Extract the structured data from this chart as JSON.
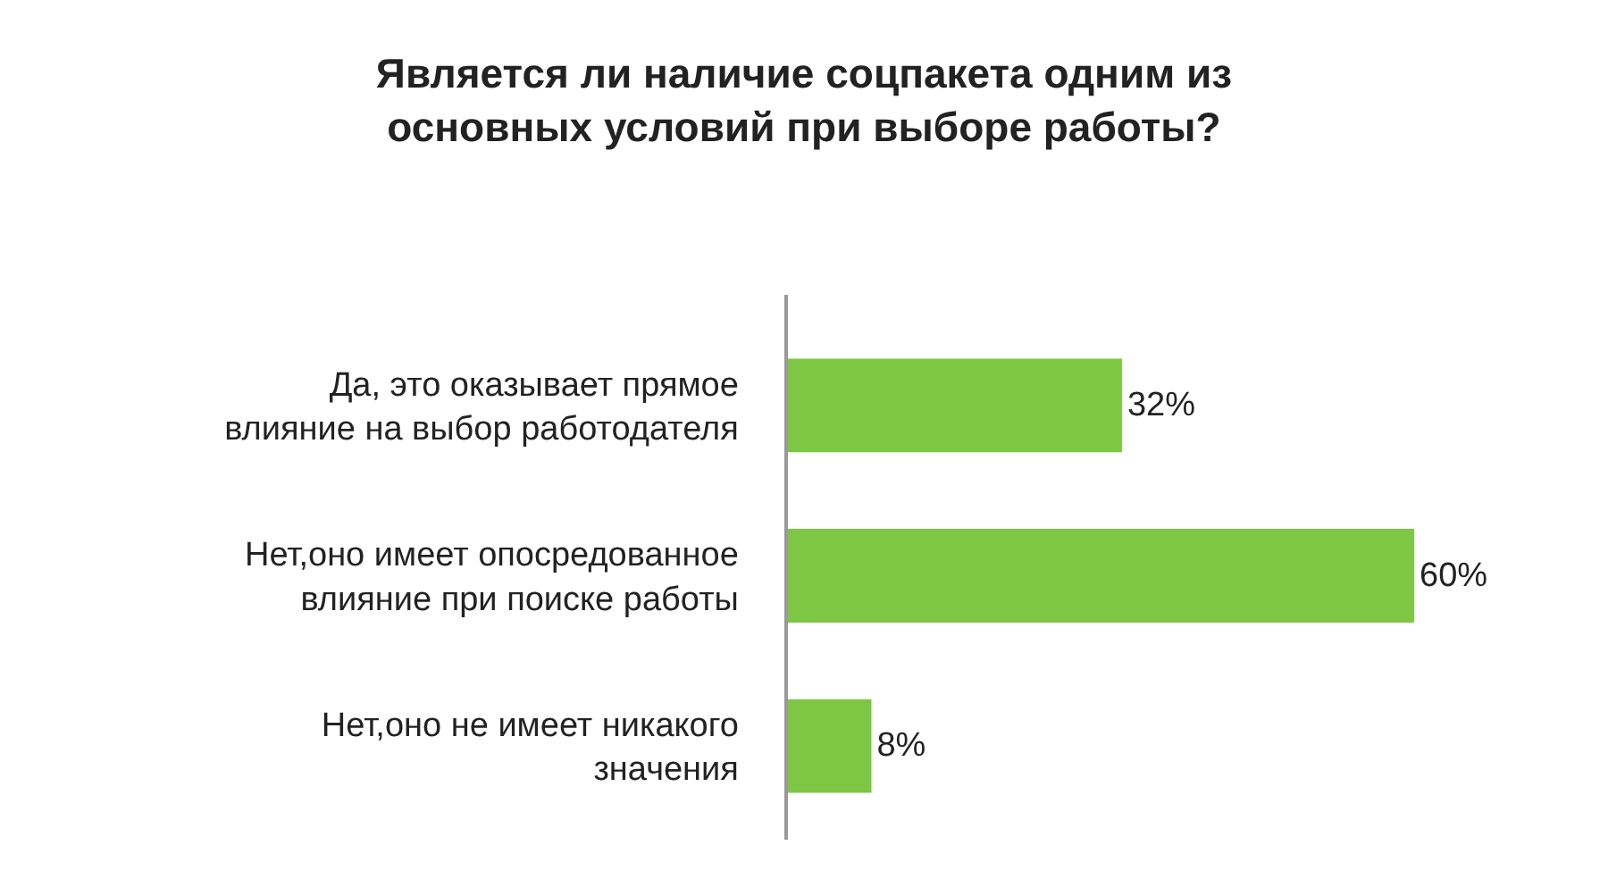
{
  "chart_data": {
    "type": "bar",
    "orientation": "horizontal",
    "title": "Является ли наличие соцпакета одним из основных условий при выборе работы?",
    "categories": [
      "Да, это оказывает прямое влияние на выбор работодателя",
      "Нет,оно имеет опосредованное влияние при поиске работы",
      "Нет,оно не имеет никакого значения"
    ],
    "values": [
      32,
      60,
      8
    ],
    "value_labels": [
      "32%",
      "60%",
      "8%"
    ],
    "color": "#7dc744",
    "tick_labels": "y"
  }
}
